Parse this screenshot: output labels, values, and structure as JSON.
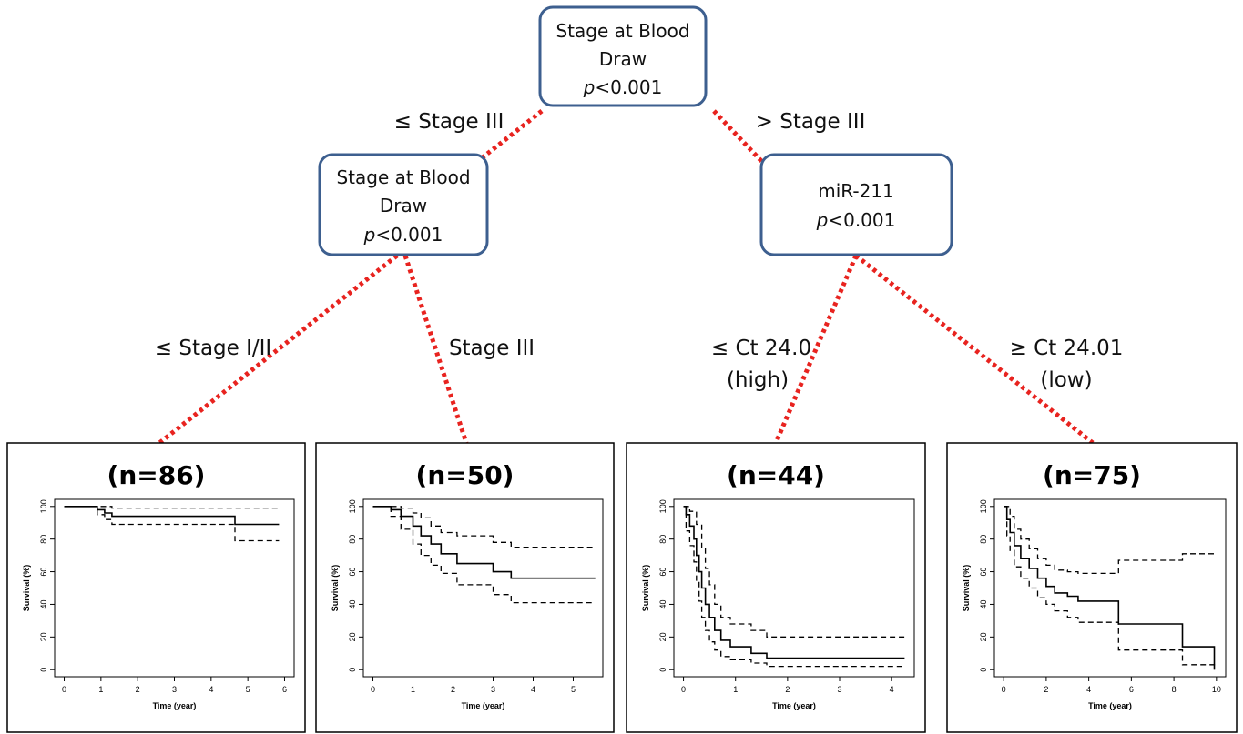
{
  "tree": {
    "root": {
      "title_line1": "Stage at Blood",
      "title_line2": "Draw",
      "p_label": "p",
      "p_value": "<0.001"
    },
    "left_node": {
      "title_line1": "Stage at Blood",
      "title_line2": "Draw",
      "p_label": "p",
      "p_value": "<0.001"
    },
    "right_node": {
      "title_line1": "miR-211",
      "p_label": "p",
      "p_value": "<0.001"
    },
    "branches": {
      "root_left": "≤ Stage III",
      "root_right": "> Stage III",
      "left_left": "≤ Stage I/II",
      "left_right": "Stage III",
      "right_left_line1": "≤ Ct 24.0",
      "right_left_line2": "(high)",
      "right_right_line1": "≥ Ct 24.01",
      "right_right_line2": "(low)"
    },
    "edge_color": "#e8231f",
    "node_border_color": "#3d5f8f"
  },
  "chart_data": [
    {
      "type": "line",
      "title": "(n=86)",
      "xlabel": "Time (year)",
      "ylabel": "Survival (%)",
      "xlim": [
        0,
        6
      ],
      "ylim": [
        0,
        100
      ],
      "xticks": [
        0,
        1,
        2,
        3,
        4,
        5,
        6
      ],
      "yticks": [
        0,
        20,
        40,
        60,
        80,
        100
      ],
      "series": [
        {
          "style": "solid",
          "points": [
            [
              0,
              100
            ],
            [
              0.9,
              100
            ],
            [
              0.9,
              98
            ],
            [
              1.1,
              98
            ],
            [
              1.1,
              96
            ],
            [
              1.3,
              96
            ],
            [
              1.3,
              94
            ],
            [
              4.65,
              94
            ],
            [
              4.65,
              89
            ],
            [
              5.85,
              89
            ]
          ]
        },
        {
          "style": "dashed",
          "points": [
            [
              0,
              100
            ],
            [
              1.3,
              100
            ],
            [
              1.3,
              99
            ],
            [
              5.85,
              99
            ]
          ]
        },
        {
          "style": "dashed",
          "points": [
            [
              0,
              100
            ],
            [
              0.9,
              100
            ],
            [
              0.9,
              95
            ],
            [
              1.1,
              95
            ],
            [
              1.1,
              92
            ],
            [
              1.3,
              92
            ],
            [
              1.3,
              89
            ],
            [
              4.65,
              89
            ],
            [
              4.65,
              79
            ],
            [
              5.85,
              79
            ]
          ]
        }
      ]
    },
    {
      "type": "line",
      "title": "(n=50)",
      "xlabel": "Time (year)",
      "ylabel": "Survival (%)",
      "xlim": [
        0,
        5.5
      ],
      "ylim": [
        0,
        100
      ],
      "xticks": [
        0,
        1,
        2,
        3,
        4,
        5
      ],
      "yticks": [
        0,
        20,
        40,
        60,
        80,
        100
      ],
      "series": [
        {
          "style": "solid",
          "points": [
            [
              0,
              100
            ],
            [
              0.45,
              100
            ],
            [
              0.45,
              98
            ],
            [
              0.7,
              98
            ],
            [
              0.7,
              94
            ],
            [
              1.0,
              94
            ],
            [
              1.0,
              88
            ],
            [
              1.2,
              88
            ],
            [
              1.2,
              82
            ],
            [
              1.45,
              82
            ],
            [
              1.45,
              77
            ],
            [
              1.7,
              77
            ],
            [
              1.7,
              71
            ],
            [
              2.1,
              71
            ],
            [
              2.1,
              65
            ],
            [
              3.0,
              65
            ],
            [
              3.0,
              60
            ],
            [
              3.45,
              60
            ],
            [
              3.45,
              56
            ],
            [
              5.55,
              56
            ]
          ]
        },
        {
          "style": "dashed",
          "points": [
            [
              0,
              100
            ],
            [
              0.7,
              100
            ],
            [
              0.7,
              99
            ],
            [
              1.0,
              99
            ],
            [
              1.0,
              96
            ],
            [
              1.2,
              96
            ],
            [
              1.2,
              93
            ],
            [
              1.45,
              93
            ],
            [
              1.45,
              88
            ],
            [
              1.7,
              88
            ],
            [
              1.7,
              84
            ],
            [
              2.1,
              84
            ],
            [
              2.1,
              82
            ],
            [
              3.0,
              82
            ],
            [
              3.0,
              78
            ],
            [
              3.45,
              78
            ],
            [
              3.45,
              75
            ],
            [
              5.55,
              75
            ]
          ]
        },
        {
          "style": "dashed",
          "points": [
            [
              0,
              100
            ],
            [
              0.45,
              100
            ],
            [
              0.45,
              94
            ],
            [
              0.7,
              94
            ],
            [
              0.7,
              86
            ],
            [
              1.0,
              86
            ],
            [
              1.0,
              77
            ],
            [
              1.2,
              77
            ],
            [
              1.2,
              70
            ],
            [
              1.45,
              70
            ],
            [
              1.45,
              64
            ],
            [
              1.7,
              64
            ],
            [
              1.7,
              59
            ],
            [
              2.1,
              59
            ],
            [
              2.1,
              52
            ],
            [
              3.0,
              52
            ],
            [
              3.0,
              46
            ],
            [
              3.45,
              46
            ],
            [
              3.45,
              41
            ],
            [
              5.55,
              41
            ]
          ]
        }
      ]
    },
    {
      "type": "line",
      "title": "(n=44)",
      "xlabel": "Time (year)",
      "ylabel": "Survival (%)",
      "xlim": [
        0,
        4.25
      ],
      "ylim": [
        0,
        100
      ],
      "xticks": [
        0,
        1,
        2,
        3,
        4
      ],
      "yticks": [
        0,
        20,
        40,
        60,
        80,
        100
      ],
      "series": [
        {
          "style": "solid",
          "points": [
            [
              0,
              100
            ],
            [
              0.05,
              100
            ],
            [
              0.05,
              95
            ],
            [
              0.12,
              95
            ],
            [
              0.12,
              88
            ],
            [
              0.2,
              88
            ],
            [
              0.2,
              80
            ],
            [
              0.25,
              80
            ],
            [
              0.25,
              70
            ],
            [
              0.3,
              70
            ],
            [
              0.3,
              60
            ],
            [
              0.35,
              60
            ],
            [
              0.35,
              50
            ],
            [
              0.42,
              50
            ],
            [
              0.42,
              40
            ],
            [
              0.5,
              40
            ],
            [
              0.5,
              32
            ],
            [
              0.6,
              32
            ],
            [
              0.6,
              24
            ],
            [
              0.72,
              24
            ],
            [
              0.72,
              18
            ],
            [
              0.9,
              18
            ],
            [
              0.9,
              14
            ],
            [
              1.3,
              14
            ],
            [
              1.3,
              10
            ],
            [
              1.6,
              10
            ],
            [
              1.6,
              7
            ],
            [
              4.25,
              7
            ]
          ]
        },
        {
          "style": "dashed",
          "points": [
            [
              0,
              100
            ],
            [
              0.12,
              100
            ],
            [
              0.12,
              97
            ],
            [
              0.25,
              97
            ],
            [
              0.25,
              89
            ],
            [
              0.35,
              89
            ],
            [
              0.35,
              74
            ],
            [
              0.42,
              74
            ],
            [
              0.42,
              62
            ],
            [
              0.5,
              62
            ],
            [
              0.5,
              52
            ],
            [
              0.6,
              52
            ],
            [
              0.6,
              40
            ],
            [
              0.72,
              40
            ],
            [
              0.72,
              32
            ],
            [
              0.9,
              32
            ],
            [
              0.9,
              28
            ],
            [
              1.3,
              28
            ],
            [
              1.3,
              24
            ],
            [
              1.6,
              24
            ],
            [
              1.6,
              20
            ],
            [
              4.25,
              20
            ]
          ]
        },
        {
          "style": "dashed",
          "points": [
            [
              0,
              100
            ],
            [
              0.05,
              100
            ],
            [
              0.05,
              85
            ],
            [
              0.12,
              85
            ],
            [
              0.12,
              76
            ],
            [
              0.2,
              76
            ],
            [
              0.2,
              66
            ],
            [
              0.25,
              66
            ],
            [
              0.25,
              54
            ],
            [
              0.3,
              54
            ],
            [
              0.3,
              42
            ],
            [
              0.35,
              42
            ],
            [
              0.35,
              32
            ],
            [
              0.42,
              32
            ],
            [
              0.42,
              24
            ],
            [
              0.5,
              24
            ],
            [
              0.5,
              17
            ],
            [
              0.6,
              17
            ],
            [
              0.6,
              12
            ],
            [
              0.72,
              12
            ],
            [
              0.72,
              8
            ],
            [
              0.9,
              8
            ],
            [
              0.9,
              6
            ],
            [
              1.3,
              6
            ],
            [
              1.3,
              4
            ],
            [
              1.6,
              4
            ],
            [
              1.6,
              2
            ],
            [
              4.25,
              2
            ]
          ]
        }
      ]
    },
    {
      "type": "line",
      "title": "(n=75)",
      "xlabel": "Time (year)",
      "ylabel": "Survival (%)",
      "xlim": [
        0,
        10
      ],
      "ylim": [
        0,
        100
      ],
      "xticks": [
        0,
        2,
        4,
        6,
        8,
        10
      ],
      "yticks": [
        0,
        20,
        40,
        60,
        80,
        100
      ],
      "series": [
        {
          "style": "solid",
          "points": [
            [
              0,
              100
            ],
            [
              0.15,
              100
            ],
            [
              0.15,
              92
            ],
            [
              0.3,
              92
            ],
            [
              0.3,
              84
            ],
            [
              0.5,
              84
            ],
            [
              0.5,
              76
            ],
            [
              0.8,
              76
            ],
            [
              0.8,
              68
            ],
            [
              1.2,
              68
            ],
            [
              1.2,
              62
            ],
            [
              1.6,
              62
            ],
            [
              1.6,
              56
            ],
            [
              2.0,
              56
            ],
            [
              2.0,
              51
            ],
            [
              2.4,
              51
            ],
            [
              2.4,
              47
            ],
            [
              3.0,
              47
            ],
            [
              3.0,
              45
            ],
            [
              3.5,
              45
            ],
            [
              3.5,
              42
            ],
            [
              5.4,
              42
            ],
            [
              5.4,
              28
            ],
            [
              8.4,
              28
            ],
            [
              8.4,
              14
            ],
            [
              9.9,
              14
            ],
            [
              9.9,
              0
            ]
          ]
        },
        {
          "style": "dashed",
          "points": [
            [
              0,
              100
            ],
            [
              0.3,
              100
            ],
            [
              0.3,
              94
            ],
            [
              0.5,
              94
            ],
            [
              0.5,
              86
            ],
            [
              0.8,
              86
            ],
            [
              0.8,
              80
            ],
            [
              1.2,
              80
            ],
            [
              1.2,
              74
            ],
            [
              1.6,
              74
            ],
            [
              1.6,
              68
            ],
            [
              2.0,
              68
            ],
            [
              2.0,
              64
            ],
            [
              2.4,
              64
            ],
            [
              2.4,
              61
            ],
            [
              3.0,
              61
            ],
            [
              3.0,
              60
            ],
            [
              3.5,
              60
            ],
            [
              3.5,
              59
            ],
            [
              5.4,
              59
            ],
            [
              5.4,
              67
            ],
            [
              8.4,
              67
            ],
            [
              8.4,
              71
            ],
            [
              10,
              71
            ]
          ]
        },
        {
          "style": "dashed",
          "points": [
            [
              0,
              100
            ],
            [
              0.15,
              100
            ],
            [
              0.15,
              82
            ],
            [
              0.3,
              82
            ],
            [
              0.3,
              73
            ],
            [
              0.5,
              73
            ],
            [
              0.5,
              63
            ],
            [
              0.8,
              63
            ],
            [
              0.8,
              56
            ],
            [
              1.2,
              56
            ],
            [
              1.2,
              50
            ],
            [
              1.6,
              50
            ],
            [
              1.6,
              44
            ],
            [
              2.0,
              44
            ],
            [
              2.0,
              40
            ],
            [
              2.4,
              40
            ],
            [
              2.4,
              36
            ],
            [
              3.0,
              36
            ],
            [
              3.0,
              32
            ],
            [
              3.5,
              32
            ],
            [
              3.5,
              29
            ],
            [
              5.4,
              29
            ],
            [
              5.4,
              12
            ],
            [
              8.4,
              12
            ],
            [
              8.4,
              3
            ],
            [
              9.9,
              3
            ],
            [
              9.9,
              0
            ]
          ]
        }
      ]
    }
  ]
}
